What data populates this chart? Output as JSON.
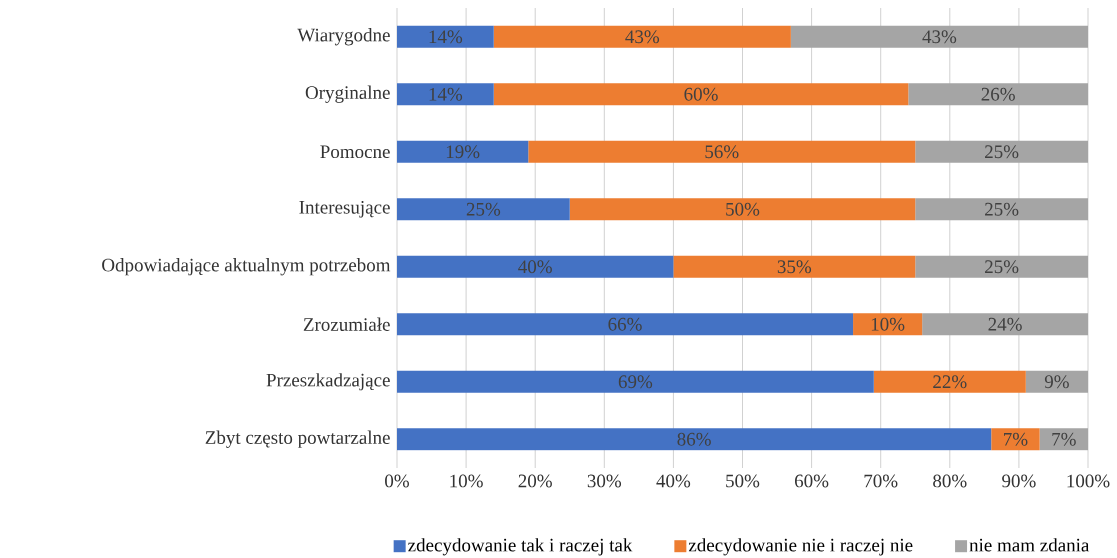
{
  "chart_data": {
    "type": "bar",
    "orientation": "horizontal",
    "stacked": true,
    "categories": [
      "Wiarygodne",
      "Oryginalne",
      "Pomocne",
      "Interesujące",
      "Odpowiadające aktualnym potrzebom",
      "Zrozumiałe",
      "Przeszkadzające",
      "Zbyt często powtarzalne"
    ],
    "series": [
      {
        "name": "zdecydowanie tak i raczej tak",
        "color": "#4472c4",
        "values": [
          14,
          14,
          19,
          25,
          40,
          66,
          69,
          86
        ],
        "value_labels": [
          "14%",
          "14%",
          "19%",
          "25%",
          "40%",
          "66%",
          "69%",
          "86%"
        ]
      },
      {
        "name": "zdecydowanie nie i raczej nie",
        "color": "#ed7d31",
        "values": [
          43,
          60,
          56,
          50,
          35,
          10,
          22,
          7
        ],
        "value_labels": [
          "43%",
          "60%",
          "56%",
          "50%",
          "35%",
          "10%",
          "22%",
          "7%"
        ]
      },
      {
        "name": "nie mam zdania",
        "color": "#a5a5a5",
        "values": [
          43,
          26,
          25,
          25,
          25,
          24,
          9,
          7
        ],
        "value_labels": [
          "43%",
          "26%",
          "25%",
          "25%",
          "25%",
          "24%",
          "9%",
          "7%"
        ]
      }
    ],
    "xlim": [
      0,
      100
    ],
    "xticks": [
      {
        "value": 0,
        "label": "0%"
      },
      {
        "value": 10,
        "label": "10%"
      },
      {
        "value": 20,
        "label": "20%"
      },
      {
        "value": 30,
        "label": "30%"
      },
      {
        "value": 40,
        "label": "40%"
      },
      {
        "value": 50,
        "label": "50%"
      },
      {
        "value": 60,
        "label": "60%"
      },
      {
        "value": 70,
        "label": "70%"
      },
      {
        "value": 80,
        "label": "80%"
      },
      {
        "value": 90,
        "label": "90%"
      },
      {
        "value": 100,
        "label": "100%"
      }
    ],
    "grid": "x",
    "legend": "bottom"
  }
}
